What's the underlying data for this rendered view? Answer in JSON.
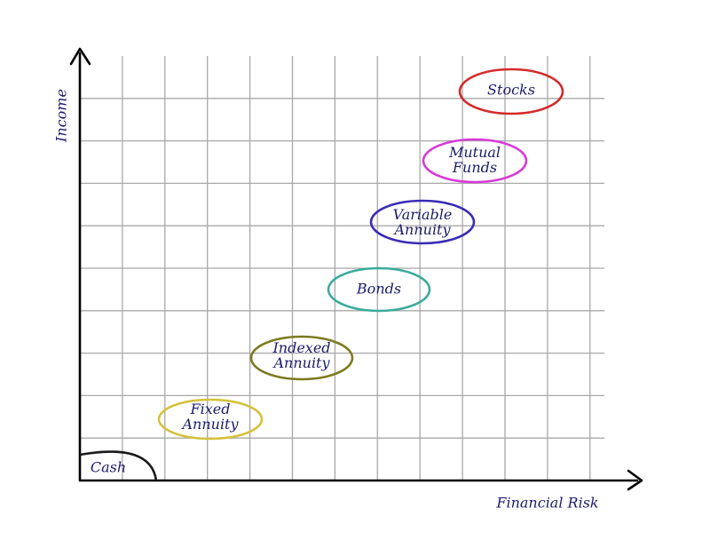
{
  "axes": {
    "y_label": "Income",
    "x_label": "Financial Risk"
  },
  "nodes": [
    {
      "lines": [
        "Cash"
      ]
    },
    {
      "lines": [
        "Fixed",
        "Annuity"
      ]
    },
    {
      "lines": [
        "Indexed",
        "Annuity"
      ]
    },
    {
      "lines": [
        "Bonds"
      ]
    },
    {
      "lines": [
        "Variable",
        "Annuity"
      ]
    },
    {
      "lines": [
        "Mutual",
        "Funds"
      ]
    },
    {
      "lines": [
        "Stocks"
      ]
    }
  ]
}
